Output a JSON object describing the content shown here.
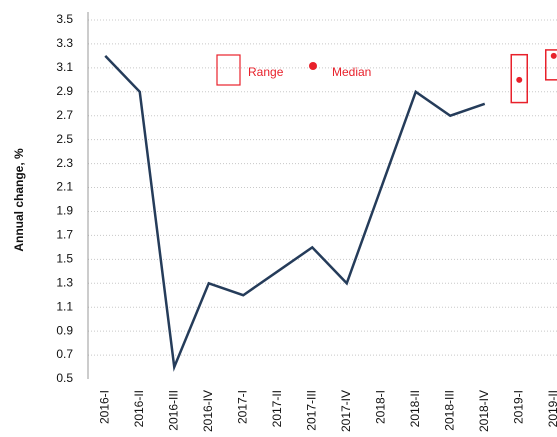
{
  "chart_data": {
    "type": "line",
    "y_label": "Annual change, %",
    "categories": [
      "2016-I",
      "2016-II",
      "2016-III",
      "2016-IV",
      "2017-I",
      "2017-II",
      "2017-III",
      "2017-IV",
      "2018-I",
      "2018-II",
      "2018-III",
      "2018-IV",
      "2019-I",
      "2019-II"
    ],
    "series": [
      {
        "color": "#253c5a",
        "values": [
          3.2,
          2.9,
          0.6,
          1.3,
          1.2,
          1.4,
          1.6,
          1.3,
          2.1,
          2.9,
          2.7,
          2.8,
          null,
          null
        ]
      }
    ],
    "range": {
      "name": "Range",
      "color": "#e8212b",
      "low": [
        null,
        null,
        null,
        null,
        null,
        null,
        null,
        null,
        null,
        null,
        null,
        null,
        2.81,
        3.0
      ],
      "high": [
        null,
        null,
        null,
        null,
        null,
        null,
        null,
        null,
        null,
        null,
        null,
        null,
        3.21,
        3.25
      ]
    },
    "median": {
      "name": "Median",
      "color": "#e8212b",
      "values": [
        null,
        null,
        null,
        null,
        null,
        null,
        null,
        null,
        null,
        null,
        null,
        null,
        3.0,
        3.2
      ]
    },
    "ylim": [
      0.5,
      3.5
    ],
    "yticks": [
      0.5,
      0.7,
      0.9,
      1.1,
      1.3,
      1.5,
      1.7,
      1.9,
      2.1,
      2.3,
      2.5,
      2.7,
      2.9,
      3.1,
      3.3,
      3.5
    ],
    "grid": true
  }
}
